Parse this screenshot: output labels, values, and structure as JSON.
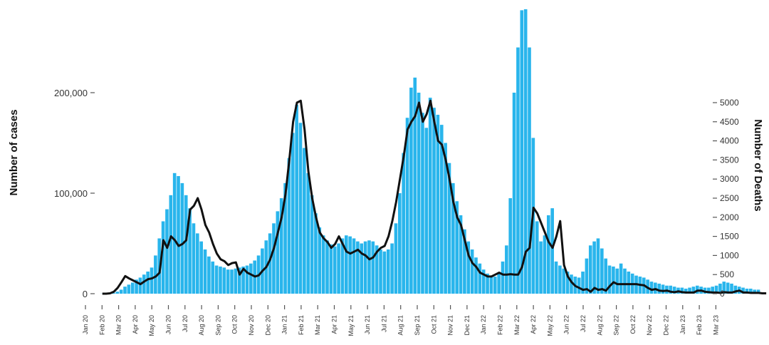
{
  "chart_data": {
    "type": "bar",
    "combo": "bar + line (dual axis)",
    "title": "",
    "ylabel_left": "Number of cases",
    "ylabel_right": "Number of Deaths",
    "left_axis": {
      "ticks": [
        0,
        100000,
        200000
      ],
      "tick_labels": [
        "0",
        "100,000",
        "200,000"
      ],
      "ylim": [
        0,
        300000
      ]
    },
    "right_axis": {
      "ticks": [
        0,
        500,
        1000,
        1500,
        2000,
        2500,
        3000,
        3500,
        4000,
        4500,
        5000
      ],
      "ylim": [
        0,
        5000
      ]
    },
    "x_ticks": [
      "Jan 20",
      "Feb 20",
      "Mar 20",
      "Apr 20",
      "May 20",
      "Jun 20",
      "Jul 20",
      "Aug 20",
      "Sep 20",
      "Oct 20",
      "Nov 20",
      "Dec 20",
      "Jan 21",
      "Feb 21",
      "Mar 21",
      "Apr 21",
      "May 21",
      "Jun 21",
      "Jul 21",
      "Aug 21",
      "Sep 21",
      "Oct 21",
      "Nov 21",
      "Dec 21",
      "Jan 22",
      "Feb 22",
      "Mar 22",
      "Apr 22",
      "May 22",
      "Jun 22",
      "Jul 22",
      "Aug 22",
      "Sep 22",
      "Oct 22",
      "Nov 22",
      "Dec 22",
      "Jan 23",
      "Feb 23",
      "Mar 23"
    ],
    "grid": false,
    "legend": "none",
    "colors": {
      "bars": "#29b5ec",
      "line": "#111111"
    },
    "series": [
      {
        "name": "Number of cases",
        "type": "bar",
        "axis": "left",
        "x_start": "2020-02-01",
        "interval_days": 7,
        "values": [
          100,
          150,
          300,
          800,
          2000,
          4000,
          7000,
          9000,
          11000,
          14000,
          16000,
          19000,
          22000,
          26000,
          38000,
          55000,
          72000,
          84000,
          98000,
          120000,
          117000,
          110000,
          98000,
          85000,
          70000,
          60000,
          52000,
          44000,
          37000,
          32000,
          28000,
          27000,
          26000,
          24000,
          24000,
          25000,
          26000,
          27000,
          28000,
          30000,
          33000,
          38000,
          45000,
          53000,
          60000,
          70000,
          82000,
          95000,
          110000,
          135000,
          160000,
          188000,
          170000,
          145000,
          120000,
          98000,
          80000,
          66000,
          58000,
          53000,
          49000,
          47000,
          50000,
          55000,
          58000,
          57000,
          55000,
          52000,
          50000,
          52000,
          53000,
          52000,
          48000,
          44000,
          42000,
          44000,
          50000,
          70000,
          100000,
          140000,
          175000,
          205000,
          215000,
          200000,
          180000,
          165000,
          195000,
          185000,
          178000,
          168000,
          150000,
          130000,
          110000,
          92000,
          78000,
          64000,
          52000,
          44000,
          36000,
          30000,
          24000,
          20000,
          18000,
          17000,
          20000,
          32000,
          48000,
          95000,
          200000,
          245000,
          282000,
          283000,
          245000,
          155000,
          72000,
          52000,
          58000,
          78000,
          85000,
          32000,
          28000,
          25000,
          22000,
          19000,
          17000,
          16000,
          22000,
          35000,
          48000,
          52000,
          55000,
          45000,
          35000,
          28000,
          27000,
          25000,
          30000,
          25000,
          22000,
          20000,
          18000,
          17000,
          16000,
          14000,
          12000,
          11000,
          10000,
          9000,
          8000,
          8000,
          7000,
          6000,
          6000,
          5000,
          6000,
          7000,
          8000,
          7000,
          6000,
          6000,
          7000,
          8000,
          10000,
          12000,
          11000,
          10000,
          8000,
          7000,
          6000,
          5000,
          5000,
          4000,
          4000
        ]
      },
      {
        "name": "Number of Deaths",
        "type": "line",
        "axis": "right",
        "x_start": "2020-02-01",
        "interval_days": 7,
        "values": [
          0,
          0,
          10,
          50,
          150,
          300,
          460,
          400,
          350,
          300,
          250,
          320,
          380,
          400,
          450,
          550,
          1400,
          1200,
          1500,
          1400,
          1250,
          1300,
          1400,
          2200,
          2300,
          2500,
          2200,
          1800,
          1600,
          1300,
          1050,
          900,
          850,
          750,
          800,
          820,
          500,
          650,
          550,
          500,
          450,
          480,
          600,
          700,
          900,
          1200,
          1600,
          2000,
          2600,
          3500,
          4500,
          5000,
          5050,
          4300,
          3200,
          2500,
          2000,
          1600,
          1450,
          1350,
          1200,
          1300,
          1500,
          1300,
          1100,
          1050,
          1100,
          1150,
          1050,
          1000,
          900,
          950,
          1100,
          1200,
          1250,
          1500,
          1900,
          2400,
          3000,
          3600,
          4300,
          4500,
          4650,
          5000,
          4500,
          4700,
          5050,
          4500,
          4000,
          3900,
          3500,
          3000,
          2400,
          2000,
          1800,
          1400,
          1000,
          800,
          700,
          550,
          500,
          450,
          450,
          500,
          550,
          500,
          500,
          510,
          500,
          500,
          700,
          1100,
          1200,
          2250,
          2100,
          1850,
          1600,
          1350,
          1200,
          1500,
          1900,
          750,
          450,
          300,
          200,
          150,
          100,
          120,
          50,
          150,
          100,
          120,
          80,
          200,
          300,
          250,
          250,
          250,
          250,
          250,
          250,
          230,
          220,
          150,
          100,
          120,
          80,
          70,
          80,
          50,
          40,
          60,
          40,
          30,
          30,
          30,
          80,
          80,
          50,
          40,
          30,
          30,
          20,
          40,
          30,
          30,
          60,
          80,
          30,
          30,
          20,
          20,
          20,
          10,
          10
        ]
      }
    ]
  }
}
